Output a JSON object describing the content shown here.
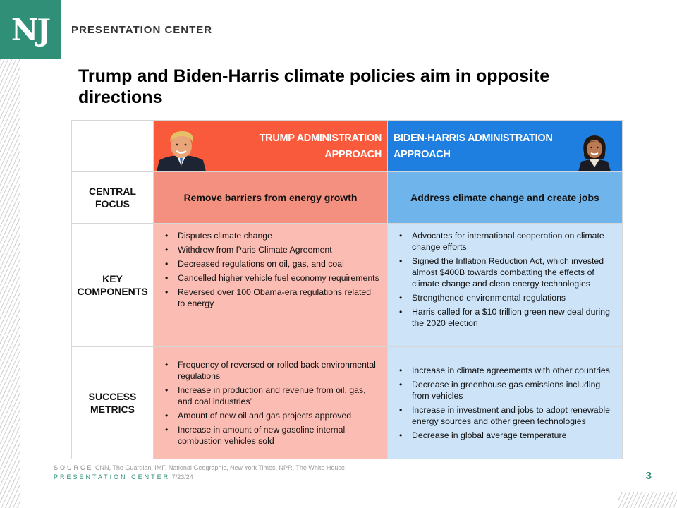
{
  "brand": {
    "logo_text": "NJ",
    "header": "PRESENTATION CENTER"
  },
  "slide": {
    "title": "Trump and Biden-Harris climate policies aim in opposite directions"
  },
  "table": {
    "col_headers": {
      "trump": "TRUMP ADMINISTRATION\nAPPROACH",
      "biden": "BIDEN-HARRIS ADMINISTRATION\nAPPROACH"
    },
    "rows": {
      "focus": {
        "label": "CENTRAL\nFOCUS",
        "trump": "Remove barriers from energy growth",
        "biden": "Address climate change and create jobs"
      },
      "components": {
        "label": "KEY\nCOMPONENTS",
        "trump": [
          "Disputes climate change",
          "Withdrew from Paris Climate Agreement",
          "Decreased regulations on oil, gas, and coal",
          "Cancelled higher vehicle fuel economy requirements",
          "Reversed over 100 Obama-era regulations related to energy"
        ],
        "biden": [
          "Advocates for international cooperation on climate change efforts",
          "Signed the Inflation Reduction Act, which invested almost $400B towards combatting the effects of climate change and clean energy technologies",
          "Strengthened environmental regulations",
          "Harris called for a $10 trillion green new deal during the 2020 election"
        ]
      },
      "metrics": {
        "label": "SUCCESS\nMETRICS",
        "trump": [
          "Frequency of reversed or rolled back environmental regulations",
          "Increase in production and revenue from oil, gas, and coal industries’",
          "Amount of new oil and gas projects approved",
          "Increase in amount of new gasoline internal combustion vehicles sold"
        ],
        "biden": [
          "Increase in climate agreements with other countries",
          "Decrease in greenhouse gas emissions including from vehicles",
          "Increase in investment and jobs to adopt renewable energy sources and other green technologies",
          "Decrease in global average temperature"
        ]
      }
    }
  },
  "footer": {
    "source_label": "SOURCE",
    "source_text": "CNN, The Guardian, IMF, National Geographic, New York Times, NPR, The White House.",
    "center_label": "PRESENTATION CENTER",
    "date": "7/23/24",
    "page": "3"
  },
  "colors": {
    "brand_green": "#2f8f77",
    "trump_header": "#fa5a3c",
    "trump_focus": "#f49080",
    "trump_cell": "#fbbcb3",
    "biden_header": "#1e7fe0",
    "biden_focus": "#6fb4ea",
    "biden_cell": "#cde4f8"
  }
}
